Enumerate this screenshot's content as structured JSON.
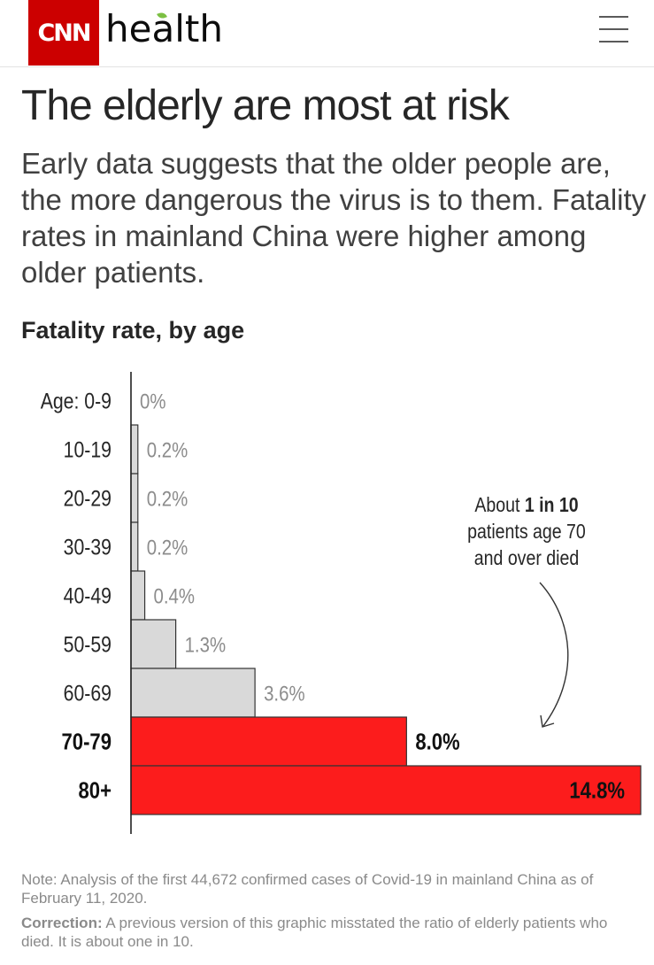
{
  "header": {
    "logo": "CNN",
    "section": "health",
    "menu_icon": "hamburger-menu-icon"
  },
  "article": {
    "title": "The elderly are most at risk",
    "subtitle": "Early data suggests that the older people are, the more dangerous the virus is to them. Fatality rates in mainland China were higher among older patients."
  },
  "colors": {
    "brand": "#cc0000",
    "highlight_bar": "#fc1c1c",
    "base_bar": "#d9d9d9",
    "bar_stroke": "#333333"
  },
  "chart_data": {
    "type": "bar",
    "orientation": "horizontal",
    "title": "Fatality rate, by age",
    "categories": [
      "Age: 0-9",
      "10-19",
      "20-29",
      "30-39",
      "40-49",
      "50-59",
      "60-69",
      "70-79",
      "80+"
    ],
    "values": [
      0,
      0.2,
      0.2,
      0.2,
      0.4,
      1.3,
      3.6,
      8.0,
      14.8
    ],
    "value_labels": [
      "0%",
      "0.2%",
      "0.2%",
      "0.2%",
      "0.4%",
      "1.3%",
      "3.6%",
      "8.0%",
      "14.8%"
    ],
    "highlighted": [
      false,
      false,
      false,
      false,
      false,
      false,
      false,
      true,
      true
    ],
    "xlim": [
      0,
      14.8
    ],
    "annotation": {
      "lines": [
        [
          "About ",
          "1 in 10"
        ],
        [
          "patients age 70"
        ],
        [
          "and over died"
        ]
      ]
    }
  },
  "footnote": {
    "note": "Note: Analysis of the first 44,672 confirmed cases of Covid-19 in mainland China as of February 11, 2020.",
    "correction_label": "Correction:",
    "correction_text": " A previous version of this graphic misstated the ratio of elderly patients who died. It is about one in 10."
  }
}
